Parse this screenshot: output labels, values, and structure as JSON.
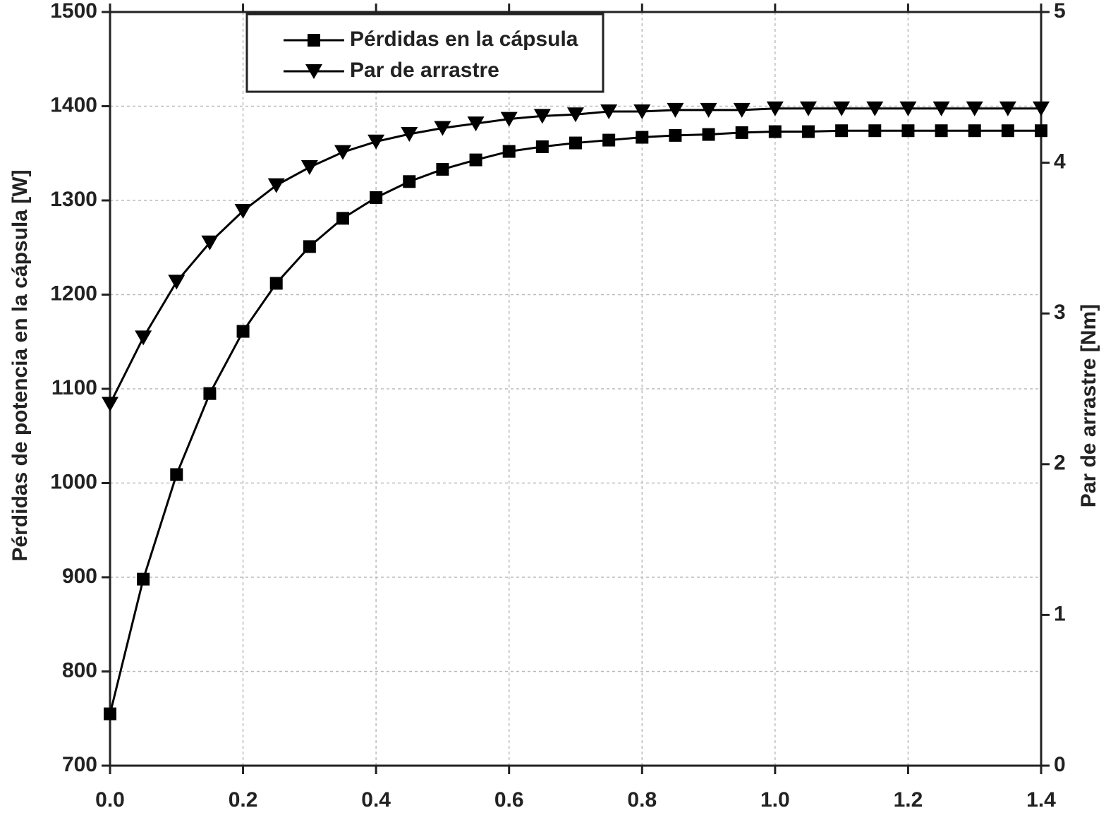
{
  "chart_data": {
    "type": "line",
    "x": [
      0,
      0.05,
      0.1,
      0.15,
      0.2,
      0.25,
      0.3,
      0.35,
      0.4,
      0.45,
      0.5,
      0.55,
      0.6,
      0.65,
      0.7,
      0.75,
      0.8,
      0.85,
      0.9,
      0.95,
      1.0,
      1.05,
      1.1,
      1.15,
      1.2,
      1.25,
      1.3,
      1.35,
      1.4
    ],
    "series": [
      {
        "name": "Pérdidas en la cápsula",
        "color": "#000000",
        "marker": "square",
        "values": [
          755,
          898,
          1009,
          1095,
          1161,
          1212,
          1251,
          1281,
          1303,
          1320,
          1333,
          1343,
          1352,
          1357,
          1361,
          1364,
          1367,
          1369,
          1370,
          1372,
          1373,
          1373,
          1374,
          1374,
          1374,
          1374,
          1374,
          1374,
          1374
        ]
      },
      {
        "name": "Par de arrastre",
        "color": "#000000",
        "marker": "triangle-down",
        "axis": "y2",
        "values": [
          2.4,
          2.84,
          3.21,
          3.47,
          3.68,
          3.85,
          3.97,
          4.07,
          4.14,
          4.19,
          4.23,
          4.26,
          4.29,
          4.31,
          4.32,
          4.34,
          4.34,
          4.35,
          4.35,
          4.35,
          4.36,
          4.36,
          4.36,
          4.36,
          4.36,
          4.36,
          4.36,
          4.36,
          4.36
        ]
      }
    ],
    "y_label": "Pérdidas de potencia en la cápsula [W]",
    "y2_label": "Par de arrastre [Nm]",
    "xlim": [
      0,
      1.4
    ],
    "xticks": [
      {
        "value": 0,
        "label": "0.0"
      },
      {
        "value": 0.2,
        "label": "0.2"
      },
      {
        "value": 0.4,
        "label": "0.4"
      },
      {
        "value": 0.6,
        "label": "0.6"
      },
      {
        "value": 0.8,
        "label": "0.8"
      },
      {
        "value": 1.0,
        "label": "1.0"
      },
      {
        "value": 1.2,
        "label": "1.2"
      },
      {
        "value": 1.4,
        "label": "1.4"
      }
    ],
    "ylim": [
      700,
      1500
    ],
    "yticks": [
      700,
      800,
      900,
      1000,
      1100,
      1200,
      1300,
      1400,
      1500
    ],
    "y2lim": [
      0,
      5
    ],
    "y2ticks": [
      0,
      1,
      2,
      3,
      4,
      5
    ],
    "grid": true,
    "legend": "top-left"
  }
}
